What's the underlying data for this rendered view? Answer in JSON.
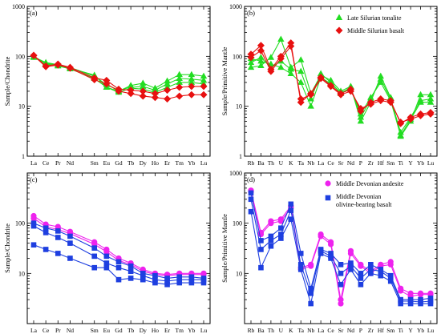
{
  "chart_data": [
    {
      "type": "line",
      "panel_label": "(a)",
      "ylabel": "Sample/Chondrite",
      "yscale": "log",
      "ylim": [
        1,
        1000
      ],
      "y_ticks": [
        {
          "v": 1,
          "t": "1"
        },
        {
          "v": 10,
          "t": "10"
        },
        {
          "v": 100,
          "t": "100"
        },
        {
          "v": 1000,
          "t": "1000"
        }
      ],
      "categories": [
        "La",
        "Ce",
        "Pr",
        "Nd",
        "",
        "Sm",
        "Eu",
        "Gd",
        "Tb",
        "Dy",
        "Ho",
        "Er",
        "Tm",
        "Yb",
        "Lu"
      ],
      "series": [
        {
          "group": "Late Silurian tonalite",
          "color": "#22dd22",
          "marker": "triangle",
          "values": [
            95,
            72,
            66,
            58,
            null,
            42,
            24,
            20,
            26,
            29,
            23,
            32,
            43,
            43,
            40
          ]
        },
        {
          "group": "Late Silurian tonalite",
          "color": "#22dd22",
          "marker": "triangle",
          "values": [
            98,
            75,
            68,
            60,
            null,
            40,
            27,
            21,
            24,
            25,
            21,
            28,
            36,
            35,
            33
          ]
        },
        {
          "group": "Late Silurian tonalite",
          "color": "#22dd22",
          "marker": "triangle",
          "values": [
            100,
            70,
            64,
            56,
            null,
            36,
            24,
            19,
            23,
            22,
            19,
            24,
            30,
            30,
            28
          ]
        },
        {
          "group": "Middle Silurian basalt",
          "color": "#e81010",
          "marker": "diamond",
          "values": [
            105,
            64,
            70,
            60,
            null,
            37,
            33,
            22,
            21,
            20,
            18,
            21,
            24,
            25,
            25
          ]
        },
        {
          "group": "Middle Silurian basalt",
          "color": "#e81010",
          "marker": "diamond",
          "values": [
            103,
            62,
            67,
            58,
            null,
            34,
            28,
            20,
            18,
            16,
            15,
            14,
            16,
            17,
            17
          ]
        }
      ]
    },
    {
      "type": "line",
      "panel_label": "(b)",
      "ylabel": "Sample/Primitive Mantle",
      "yscale": "log",
      "ylim": [
        1,
        1000
      ],
      "y_ticks": [
        {
          "v": 1,
          "t": "1"
        },
        {
          "v": 10,
          "t": "10"
        },
        {
          "v": 100,
          "t": "100"
        },
        {
          "v": 1000,
          "t": "1000"
        }
      ],
      "categories": [
        "Rb",
        "Ba",
        "Th",
        "U",
        "K",
        "Ta",
        "Nb",
        "La",
        "Ce",
        "Sr",
        "Nd",
        "P",
        "Zr",
        "Hf",
        "Sm",
        "Ti",
        "Y",
        "Yb",
        "Lu"
      ],
      "legend": [
        {
          "label": "Late Silurian tonalite",
          "color": "#22dd22",
          "marker": "triangle"
        },
        {
          "label": "Middle Silurian basalt",
          "color": "#e81010",
          "marker": "diamond"
        }
      ],
      "series": [
        {
          "group": "Late Silurian tonalite",
          "color": "#22dd22",
          "marker": "triangle",
          "values": [
            60,
            65,
            95,
            220,
            60,
            85,
            18,
            42,
            33,
            20,
            25,
            5,
            12,
            40,
            15,
            2.5,
            5,
            17,
            17
          ]
        },
        {
          "group": "Late Silurian tonalite",
          "color": "#22dd22",
          "marker": "triangle",
          "values": [
            75,
            95,
            60,
            80,
            55,
            50,
            14,
            45,
            30,
            18,
            24,
            6,
            14,
            35,
            14,
            3,
            6,
            13,
            14
          ]
        },
        {
          "group": "Late Silurian tonalite",
          "color": "#22dd22",
          "marker": "triangle",
          "values": [
            90,
            80,
            70,
            60,
            45,
            30,
            10,
            38,
            28,
            19,
            22,
            7,
            15,
            30,
            13,
            2.6,
            5.5,
            12,
            12
          ]
        },
        {
          "group": "Middle Silurian basalt",
          "color": "#e81010",
          "marker": "diamond",
          "values": [
            110,
            165,
            55,
            100,
            185,
            12,
            18,
            38,
            26,
            18,
            22,
            8,
            12,
            14,
            13,
            4.5,
            6,
            7,
            7.5
          ]
        },
        {
          "group": "Middle Silurian basalt",
          "color": "#e81010",
          "marker": "diamond",
          "values": [
            95,
            130,
            50,
            90,
            160,
            14,
            17,
            36,
            25,
            17,
            20,
            9,
            11,
            13,
            12,
            4.8,
            5.5,
            6.5,
            7
          ]
        }
      ]
    },
    {
      "type": "line",
      "panel_label": "(c)",
      "ylabel": "Sample/Chondrite",
      "yscale": "log",
      "ylim": [
        1,
        1000
      ],
      "y_ticks": [
        {
          "v": 10,
          "t": "10"
        },
        {
          "v": 100,
          "t": "100"
        }
      ],
      "categories": [
        "La",
        "Ce",
        "Pr",
        "Nd",
        "",
        "Sm",
        "Eu",
        "Gd",
        "Tb",
        "Dy",
        "Ho",
        "Er",
        "Tm",
        "Yb",
        "Lu"
      ],
      "series": [
        {
          "group": "Middle Devonian andesite",
          "color": "#ee22ee",
          "marker": "circle",
          "values": [
            140,
            95,
            85,
            68,
            null,
            42,
            30,
            20,
            16,
            12,
            10,
            9.5,
            10,
            10,
            10
          ]
        },
        {
          "group": "Middle Devonian andesite",
          "color": "#ee22ee",
          "marker": "circle",
          "values": [
            125,
            85,
            75,
            62,
            null,
            38,
            27,
            18,
            15,
            11,
            9.5,
            9,
            9.5,
            9.5,
            9.5
          ]
        },
        {
          "group": "Middle Devonian olivine-bearing basalt",
          "color": "#1e3fe0",
          "marker": "square",
          "values": [
            100,
            80,
            70,
            55,
            null,
            32,
            22,
            17,
            14,
            10,
            9,
            8,
            8.5,
            8.5,
            8
          ]
        },
        {
          "group": "Middle Devonian olivine-bearing basalt",
          "color": "#1e3fe0",
          "marker": "square",
          "values": [
            88,
            65,
            52,
            40,
            null,
            22,
            16,
            13,
            11,
            9,
            7.5,
            7,
            7.5,
            7.5,
            7.5
          ]
        },
        {
          "group": "Middle Devonian olivine-bearing basalt",
          "color": "#1e3fe0",
          "marker": "square",
          "values": [
            37,
            30,
            25,
            20,
            null,
            13,
            13,
            7.5,
            8,
            7.5,
            6.5,
            6,
            6.5,
            6.5,
            6.5
          ]
        }
      ]
    },
    {
      "type": "line",
      "panel_label": "(d)",
      "ylabel": "Sample/Primitive Mantle",
      "yscale": "log",
      "ylim": [
        1,
        1000
      ],
      "y_ticks": [
        {
          "v": 10,
          "t": "10"
        },
        {
          "v": 100,
          "t": "100"
        },
        {
          "v": 1000,
          "t": "1000"
        }
      ],
      "categories": [
        "Rb",
        "Ba",
        "Th",
        "U",
        "K",
        "Ta",
        "Nb",
        "La",
        "Ce",
        "Sr",
        "Nd",
        "P",
        "Zr",
        "Hf",
        "Sm",
        "Ti",
        "Y",
        "Yb",
        "Lu"
      ],
      "legend": [
        {
          "label": "Middle Devonian andesite",
          "color": "#ee22ee",
          "marker": "circle"
        },
        {
          "label": "Middle Devonian olivine-bearing basalt",
          "color": "#1e3fe0",
          "marker": "square"
        }
      ],
      "series": [
        {
          "group": "Middle Devonian andesite",
          "color": "#ee22ee",
          "marker": "circle",
          "values": [
            450,
            65,
            110,
            120,
            220,
            13,
            15,
            60,
            42,
            3,
            28,
            15,
            11,
            15,
            17,
            5,
            4,
            4,
            4
          ]
        },
        {
          "group": "Middle Devonian andesite",
          "color": "#ee22ee",
          "marker": "circle",
          "values": [
            420,
            60,
            100,
            110,
            200,
            12,
            14,
            55,
            38,
            2.5,
            25,
            14,
            10,
            14,
            15,
            4.5,
            3.5,
            3.8,
            3.8
          ]
        },
        {
          "group": "Middle Devonian olivine-bearing basalt",
          "color": "#1e3fe0",
          "marker": "square",
          "values": [
            400,
            45,
            55,
            80,
            240,
            25,
            5,
            30,
            25,
            15,
            16,
            10,
            15,
            12,
            9,
            3,
            3,
            3,
            3.2
          ]
        },
        {
          "group": "Middle Devonian olivine-bearing basalt",
          "color": "#1e3fe0",
          "marker": "square",
          "values": [
            300,
            30,
            45,
            60,
            180,
            15,
            4,
            28,
            22,
            10,
            14,
            8,
            12,
            11,
            8,
            2.8,
            2.8,
            2.7,
            2.8
          ]
        },
        {
          "group": "Middle Devonian olivine-bearing basalt",
          "color": "#1e3fe0",
          "marker": "square",
          "values": [
            170,
            13,
            35,
            50,
            120,
            12,
            2.5,
            25,
            20,
            6,
            12,
            6,
            10,
            9,
            7,
            2.5,
            2.5,
            2.5,
            2.5
          ]
        }
      ]
    }
  ]
}
